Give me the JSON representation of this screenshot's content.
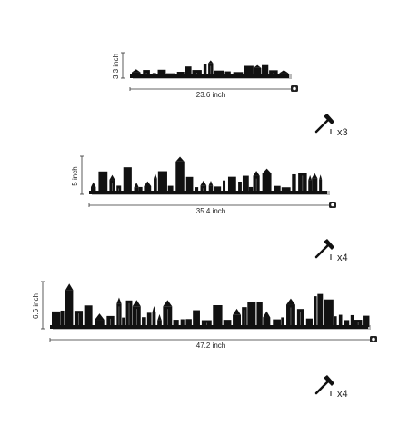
{
  "items": [
    {
      "height": "3.3 inch",
      "width": "23.6 inch",
      "count": "x3"
    },
    {
      "height": "5 inch",
      "width": "35.4 inch",
      "count": "x4"
    },
    {
      "height": "6.6 inch",
      "width": "47.2 inch",
      "count": "x4"
    }
  ]
}
